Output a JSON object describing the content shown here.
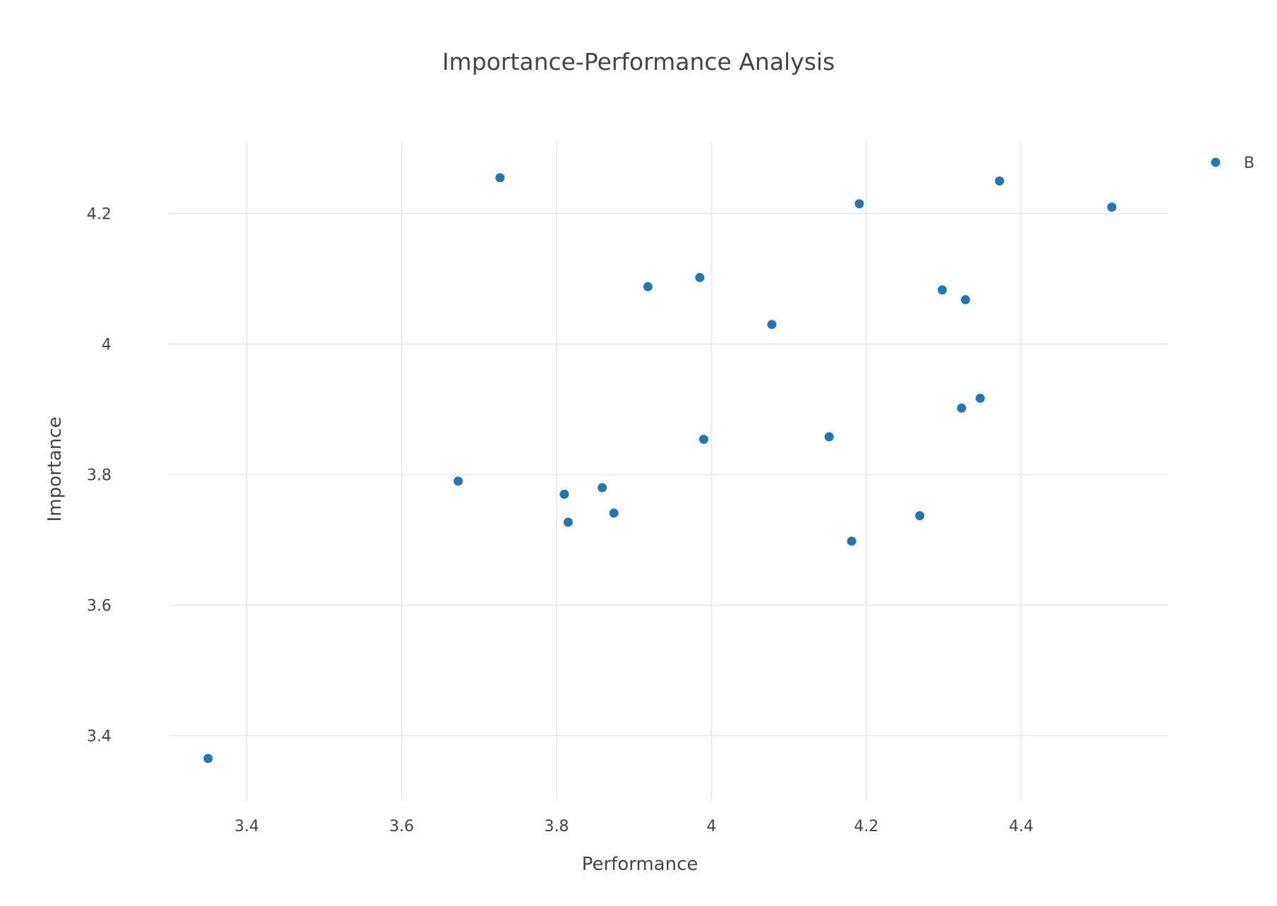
{
  "chart_data": {
    "type": "scatter",
    "title": "Importance-Performance Analysis",
    "xlabel": "Performance",
    "ylabel": "Importance",
    "xlim": [
      3.3,
      4.59
    ],
    "ylim": [
      3.3,
      4.31
    ],
    "xticks": [
      3.4,
      3.6,
      3.8,
      4.0,
      4.2,
      4.4
    ],
    "xtick_labels": [
      "3.4",
      "3.6",
      "3.8",
      "4",
      "4.2",
      "4.4"
    ],
    "yticks": [
      3.4,
      3.6,
      3.8,
      4.0,
      4.2
    ],
    "ytick_labels": [
      "3.4",
      "3.6",
      "3.8",
      "4",
      "4.2"
    ],
    "grid": true,
    "legend_position": "top-right",
    "series": [
      {
        "name": "B",
        "color": "#1f77b4",
        "points": [
          {
            "x": 3.35,
            "y": 3.365
          },
          {
            "x": 3.673,
            "y": 3.79
          },
          {
            "x": 3.727,
            "y": 4.255
          },
          {
            "x": 3.81,
            "y": 3.77
          },
          {
            "x": 3.815,
            "y": 3.727
          },
          {
            "x": 3.859,
            "y": 3.78
          },
          {
            "x": 3.874,
            "y": 3.741
          },
          {
            "x": 3.918,
            "y": 4.088
          },
          {
            "x": 3.985,
            "y": 4.102
          },
          {
            "x": 3.99,
            "y": 3.854
          },
          {
            "x": 4.078,
            "y": 4.03
          },
          {
            "x": 4.152,
            "y": 3.858
          },
          {
            "x": 4.181,
            "y": 3.698
          },
          {
            "x": 4.191,
            "y": 4.215
          },
          {
            "x": 4.269,
            "y": 3.737
          },
          {
            "x": 4.298,
            "y": 4.083
          },
          {
            "x": 4.323,
            "y": 3.902
          },
          {
            "x": 4.328,
            "y": 4.068
          },
          {
            "x": 4.347,
            "y": 3.917
          },
          {
            "x": 4.372,
            "y": 4.25
          },
          {
            "x": 4.517,
            "y": 4.21
          }
        ]
      }
    ]
  }
}
